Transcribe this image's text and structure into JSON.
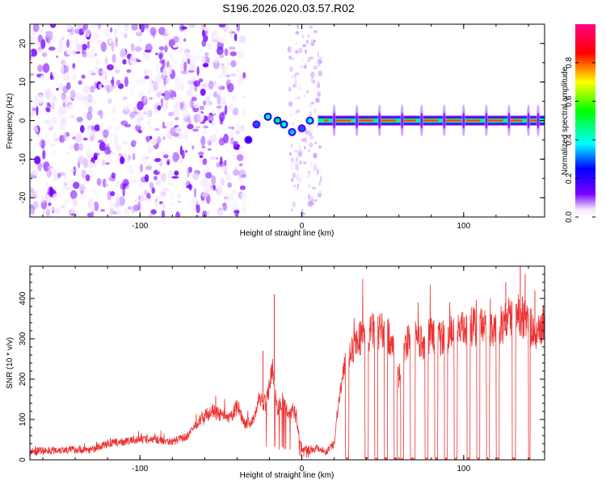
{
  "title": "S196.2026.020.03.57.R02",
  "chart_data": [
    {
      "type": "heatmap",
      "xlabel": "Height of straight line (km)",
      "ylabel": "Frequency (Hz)",
      "xlim": [
        -168,
        150
      ],
      "ylim": [
        -25,
        25
      ],
      "xticks": [
        -100,
        0,
        100
      ],
      "yticks": [
        -20,
        -10,
        0,
        10,
        20
      ],
      "colorbar": {
        "label": "Normalized spectral amplitude",
        "range": [
          0,
          1
        ],
        "ticks": [
          0.0,
          0.2,
          0.4,
          0.6,
          0.8
        ],
        "tick_labels": [
          "0.0",
          "0.2",
          "0.4",
          "0.6",
          "0.8"
        ],
        "colormap": [
          "#ffffff",
          "#7b00ff",
          "#0000ff",
          "#00ffff",
          "#00ff00",
          "#ffff00",
          "#ff0000",
          "#ff0080"
        ]
      },
      "noise_region_km": [
        -168,
        -35
      ],
      "sparse_noise_region_km": [
        -8,
        12
      ],
      "carrier_start_km": 10,
      "carrier_frequency_hz": 0,
      "carrier_amplitude": 0.8,
      "transition_blobs": [
        {
          "x": -33,
          "y": -5,
          "amplitude": 0.25
        },
        {
          "x": -28,
          "y": -1,
          "amplitude": 0.3
        },
        {
          "x": -21,
          "y": 1,
          "amplitude": 0.45
        },
        {
          "x": -15,
          "y": 0,
          "amplitude": 0.5
        },
        {
          "x": -11,
          "y": -1,
          "amplitude": 0.45
        },
        {
          "x": -6,
          "y": -3,
          "amplitude": 0.35
        },
        {
          "x": 0,
          "y": -2,
          "amplitude": 0.3
        },
        {
          "x": 5,
          "y": 0,
          "amplitude": 0.4
        }
      ],
      "carrier_breaks_km": [
        18,
        32,
        46,
        60,
        72,
        86,
        100,
        112,
        126,
        138
      ],
      "carrier_spikes_km": [
        20,
        34,
        48,
        62,
        74,
        88,
        100,
        114,
        128,
        140,
        146
      ]
    },
    {
      "type": "line",
      "xlabel": "Height of straight line (km)",
      "ylabel": "SNR (10 * v/v)",
      "xlim": [
        -168,
        150
      ],
      "ylim": [
        0,
        480
      ],
      "xticks": [
        -100,
        0,
        100
      ],
      "yticks": [
        0,
        100,
        200,
        300,
        400
      ],
      "color": "#ee3333",
      "x": [
        -168,
        -150,
        -130,
        -120,
        -110,
        -100,
        -90,
        -80,
        -70,
        -65,
        -60,
        -55,
        -50,
        -45,
        -40,
        -35,
        -30,
        -27,
        -22,
        -18,
        -15,
        -12,
        -8,
        -5,
        0,
        5,
        10,
        15,
        20,
        22,
        25,
        28,
        30,
        35,
        40,
        45,
        50,
        55,
        60,
        65,
        70,
        75,
        80,
        85,
        90,
        95,
        100,
        105,
        110,
        115,
        120,
        125,
        130,
        135,
        140,
        145,
        150
      ],
      "values": [
        20,
        25,
        25,
        40,
        45,
        50,
        50,
        45,
        60,
        90,
        110,
        120,
        110,
        100,
        130,
        90,
        95,
        150,
        140,
        230,
        120,
        150,
        110,
        130,
        30,
        25,
        30,
        20,
        40,
        120,
        200,
        250,
        270,
        300,
        310,
        320,
        320,
        300,
        200,
        290,
        300,
        290,
        310,
        300,
        310,
        320,
        320,
        330,
        330,
        330,
        320,
        340,
        360,
        360,
        340,
        300,
        350
      ],
      "spikes": [
        {
          "x": -17,
          "y": 410
        },
        {
          "x": -24,
          "y": 270
        },
        {
          "x": 135,
          "y": 480
        },
        {
          "x": 138,
          "y": 460
        },
        {
          "x": 126,
          "y": 440
        },
        {
          "x": 144,
          "y": 420
        }
      ],
      "dropouts": [
        {
          "from": 27,
          "to": 29
        },
        {
          "from": 39,
          "to": 41
        },
        {
          "from": 45,
          "to": 47
        },
        {
          "from": 51,
          "to": 53
        },
        {
          "from": 57,
          "to": 59
        },
        {
          "from": 61,
          "to": 63
        },
        {
          "from": 67,
          "to": 70
        },
        {
          "from": 76,
          "to": 78
        },
        {
          "from": 82,
          "to": 84
        },
        {
          "from": 88,
          "to": 90
        },
        {
          "from": 94,
          "to": 96
        },
        {
          "from": 102,
          "to": 104
        },
        {
          "from": 108,
          "to": 110
        },
        {
          "from": 114,
          "to": 116
        },
        {
          "from": 120,
          "to": 122
        },
        {
          "from": 130,
          "to": 132
        },
        {
          "from": 140,
          "to": 141
        }
      ]
    }
  ]
}
